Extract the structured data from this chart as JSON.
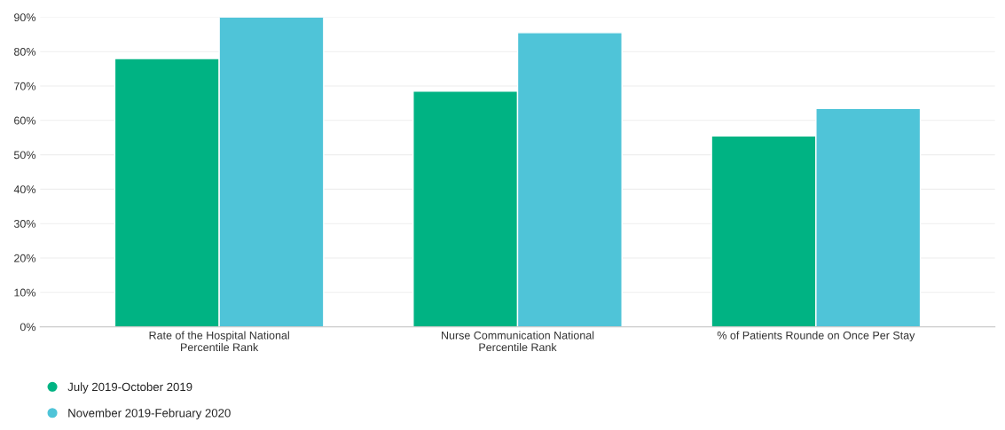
{
  "chart_data": {
    "type": "bar",
    "categories": [
      "Rate of the Hospital National\nPercentile Rank",
      "Nurse Communication National\nPercentile Rank",
      "% of Patients Rounde on Once Per Stay"
    ],
    "series": [
      {
        "name": "July 2019-October 2019",
        "color": "#00b383",
        "values": [
          78,
          68.5,
          55.5
        ]
      },
      {
        "name": "November 2019-February 2020",
        "color": "#4fc4d8",
        "values": [
          90,
          85.5,
          63.5
        ]
      }
    ],
    "ylim": [
      0,
      90
    ],
    "yticks": [
      {
        "value": 0,
        "label": "0%"
      },
      {
        "value": 10,
        "label": "10%"
      },
      {
        "value": 20,
        "label": "20%"
      },
      {
        "value": 30,
        "label": "30%"
      },
      {
        "value": 40,
        "label": "40%"
      },
      {
        "value": 50,
        "label": "50%"
      },
      {
        "value": 60,
        "label": "60%"
      },
      {
        "value": 70,
        "label": "70%"
      },
      {
        "value": 80,
        "label": "80%"
      },
      {
        "value": 90,
        "label": "90%"
      }
    ],
    "grid": "y",
    "legend": "bottom left"
  }
}
